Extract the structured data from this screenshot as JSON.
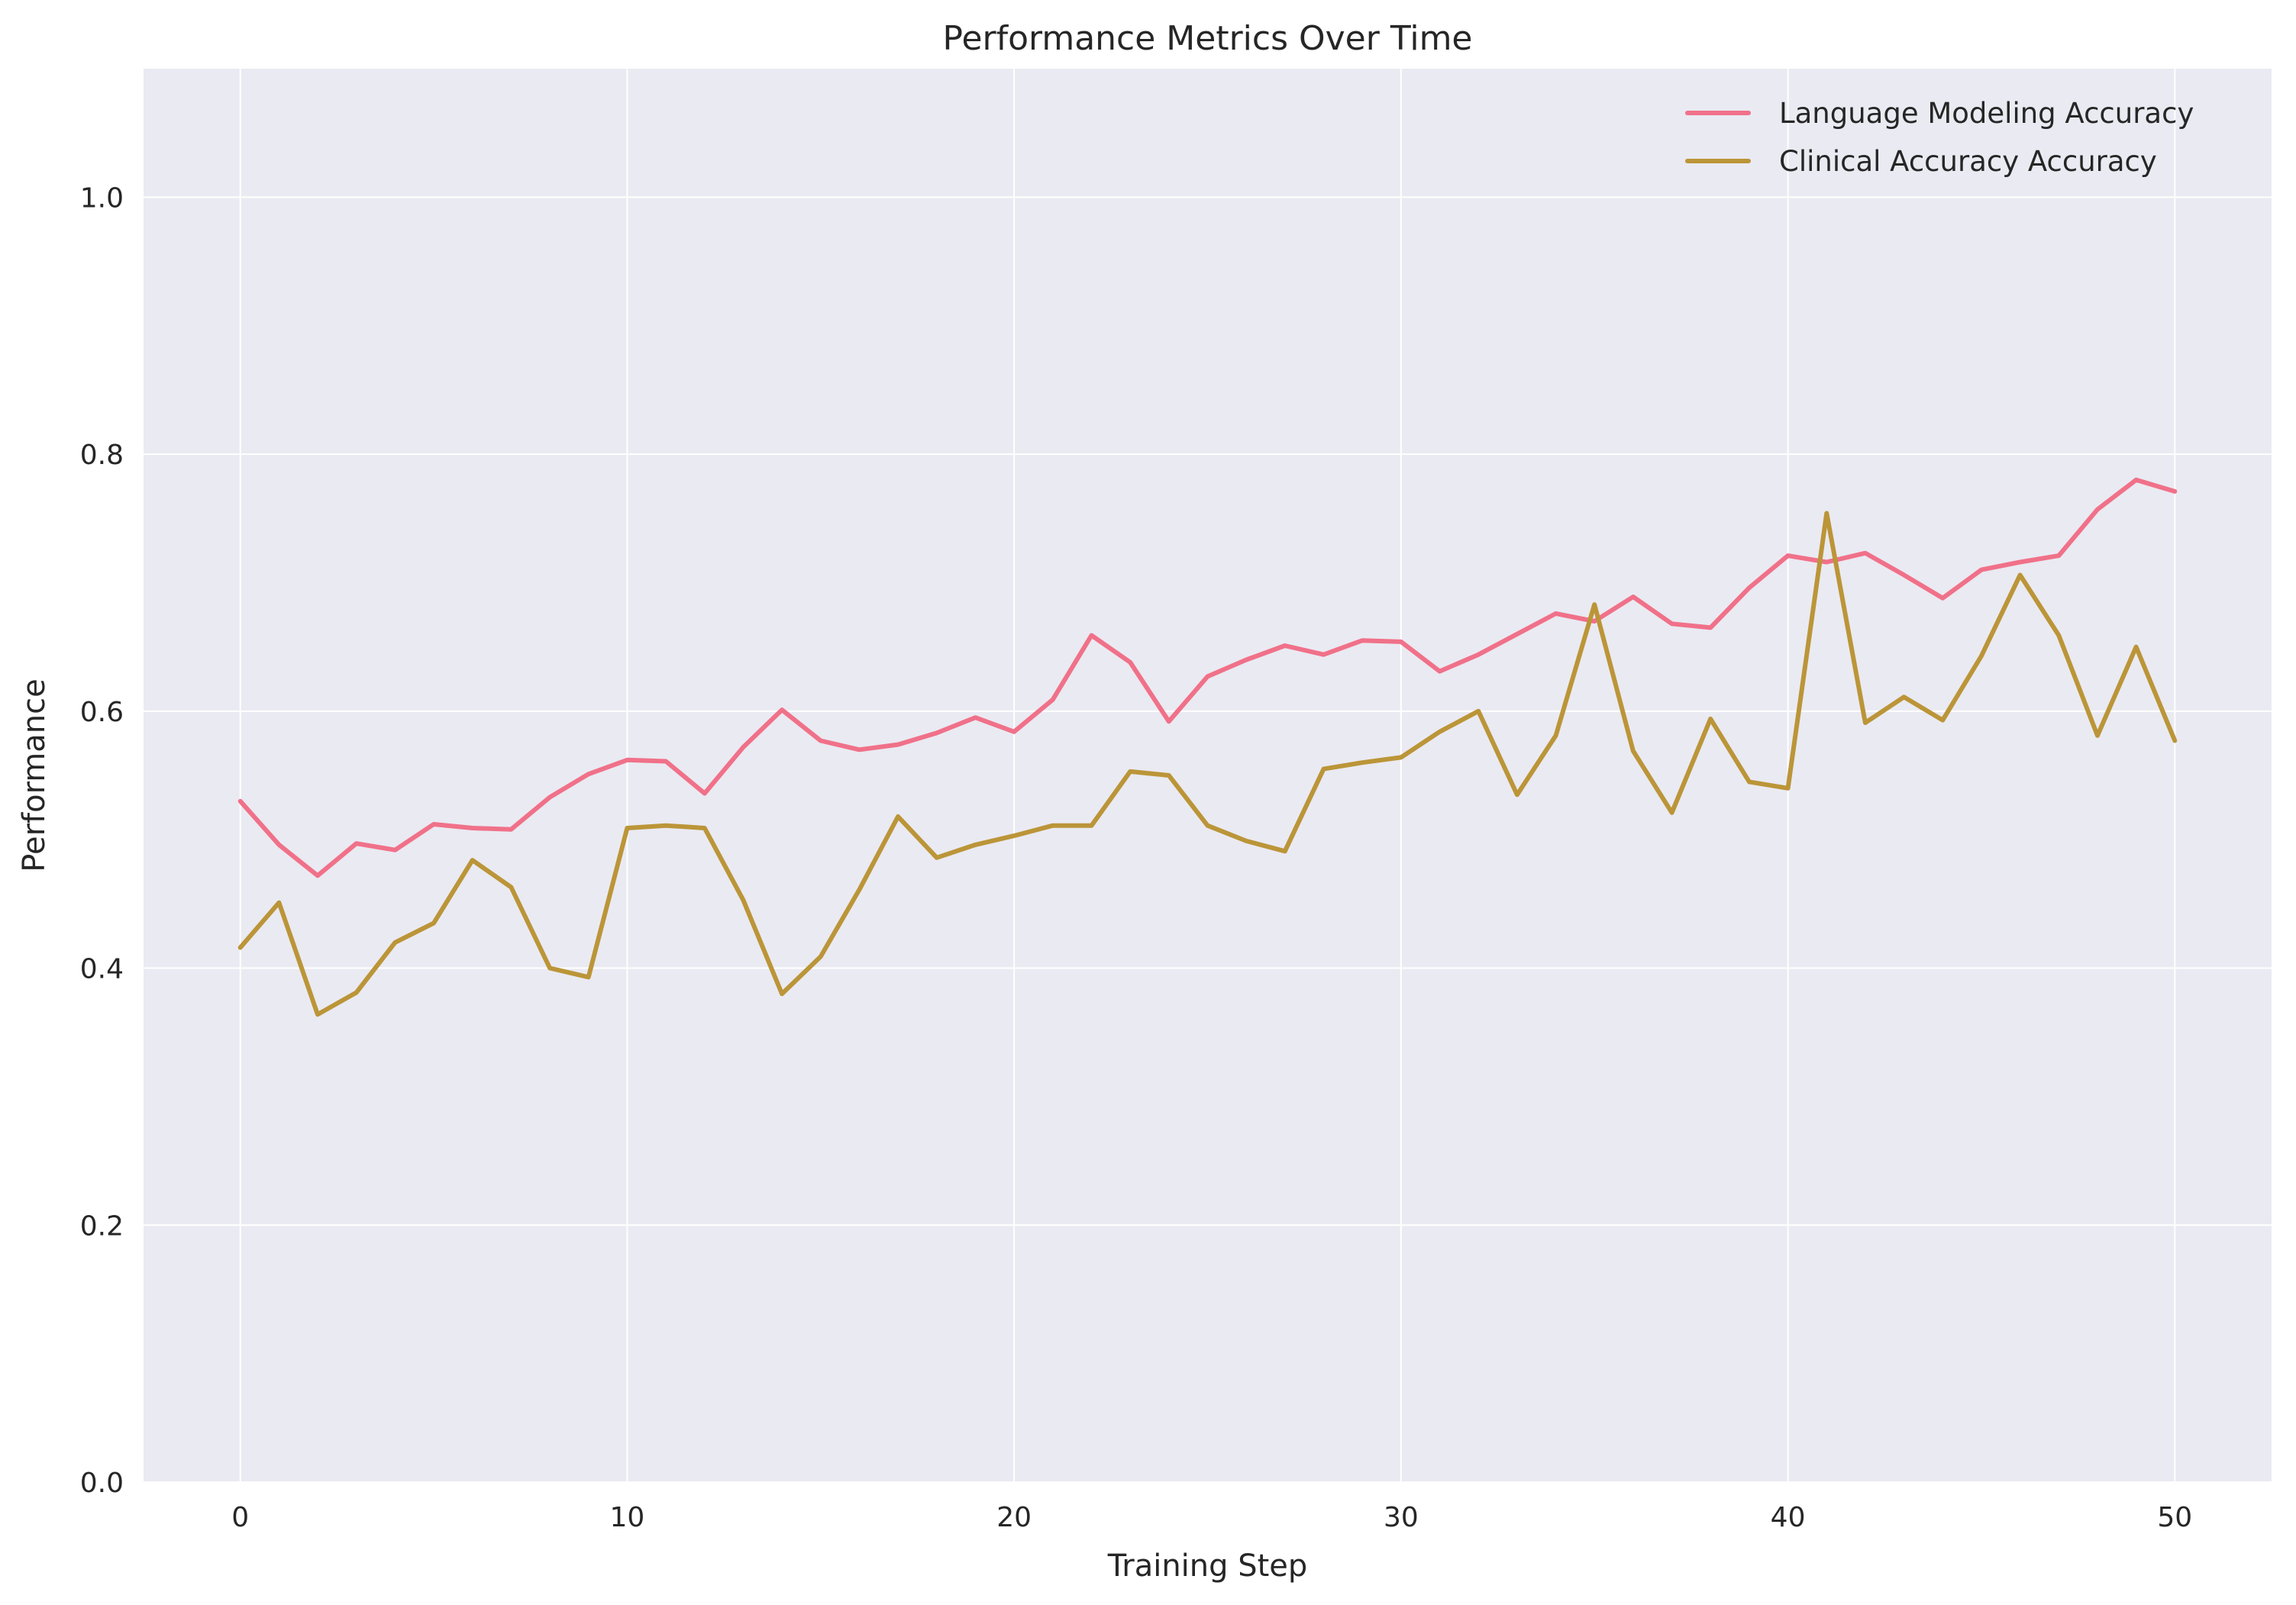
{
  "chart_data": {
    "type": "line",
    "title": "Performance Metrics Over Time",
    "xlabel": "Training Step",
    "ylabel": "Performance",
    "xlim": [
      -2.5,
      52.5
    ],
    "ylim": [
      0.0,
      1.1
    ],
    "xticks": [
      0,
      10,
      20,
      30,
      40,
      50
    ],
    "xtick_labels": [
      "0",
      "10",
      "20",
      "30",
      "40",
      "50"
    ],
    "yticks": [
      0.0,
      0.2,
      0.4,
      0.6,
      0.8,
      1.0
    ],
    "ytick_labels": [
      "0.0",
      "0.2",
      "0.4",
      "0.6",
      "0.8",
      "1.0"
    ],
    "grid": true,
    "legend_position": "top-right",
    "x": [
      0,
      1,
      2,
      3,
      4,
      5,
      6,
      7,
      8,
      9,
      10,
      11,
      12,
      13,
      14,
      15,
      16,
      17,
      18,
      19,
      20,
      21,
      22,
      23,
      24,
      25,
      26,
      27,
      28,
      29,
      30,
      31,
      32,
      33,
      34,
      35,
      36,
      37,
      38,
      39,
      40,
      41,
      42,
      43,
      44,
      45,
      46,
      47,
      48,
      49,
      50
    ],
    "series": [
      {
        "name": "Language Modeling Accuracy",
        "color": "#f07189",
        "values": [
          0.53,
          0.496,
          0.472,
          0.497,
          0.492,
          0.512,
          0.509,
          0.508,
          0.533,
          0.551,
          0.562,
          0.561,
          0.536,
          0.572,
          0.601,
          0.577,
          0.57,
          0.574,
          0.583,
          0.595,
          0.584,
          0.609,
          0.659,
          0.638,
          0.592,
          0.627,
          0.64,
          0.651,
          0.644,
          0.655,
          0.654,
          0.631,
          0.644,
          0.66,
          0.676,
          0.67,
          0.689,
          0.668,
          0.665,
          0.696,
          0.721,
          0.716,
          0.723,
          0.706,
          0.688,
          0.71,
          0.716,
          0.721,
          0.757,
          0.78,
          0.771
        ]
      },
      {
        "name": "Clinical Accuracy Accuracy",
        "color": "#bb9538",
        "values": [
          0.416,
          0.451,
          0.364,
          0.381,
          0.42,
          0.435,
          0.484,
          0.463,
          0.4,
          0.393,
          0.509,
          0.511,
          0.509,
          0.453,
          0.38,
          0.409,
          0.461,
          0.518,
          0.486,
          0.496,
          0.503,
          0.511,
          0.511,
          0.553,
          0.55,
          0.511,
          0.499,
          0.491,
          0.555,
          0.56,
          0.564,
          0.584,
          0.6,
          0.535,
          0.581,
          0.683,
          0.569,
          0.521,
          0.594,
          0.545,
          0.54,
          0.754,
          0.591,
          0.611,
          0.593,
          0.643,
          0.706,
          0.659,
          0.581,
          0.65,
          0.577
        ]
      }
    ]
  }
}
